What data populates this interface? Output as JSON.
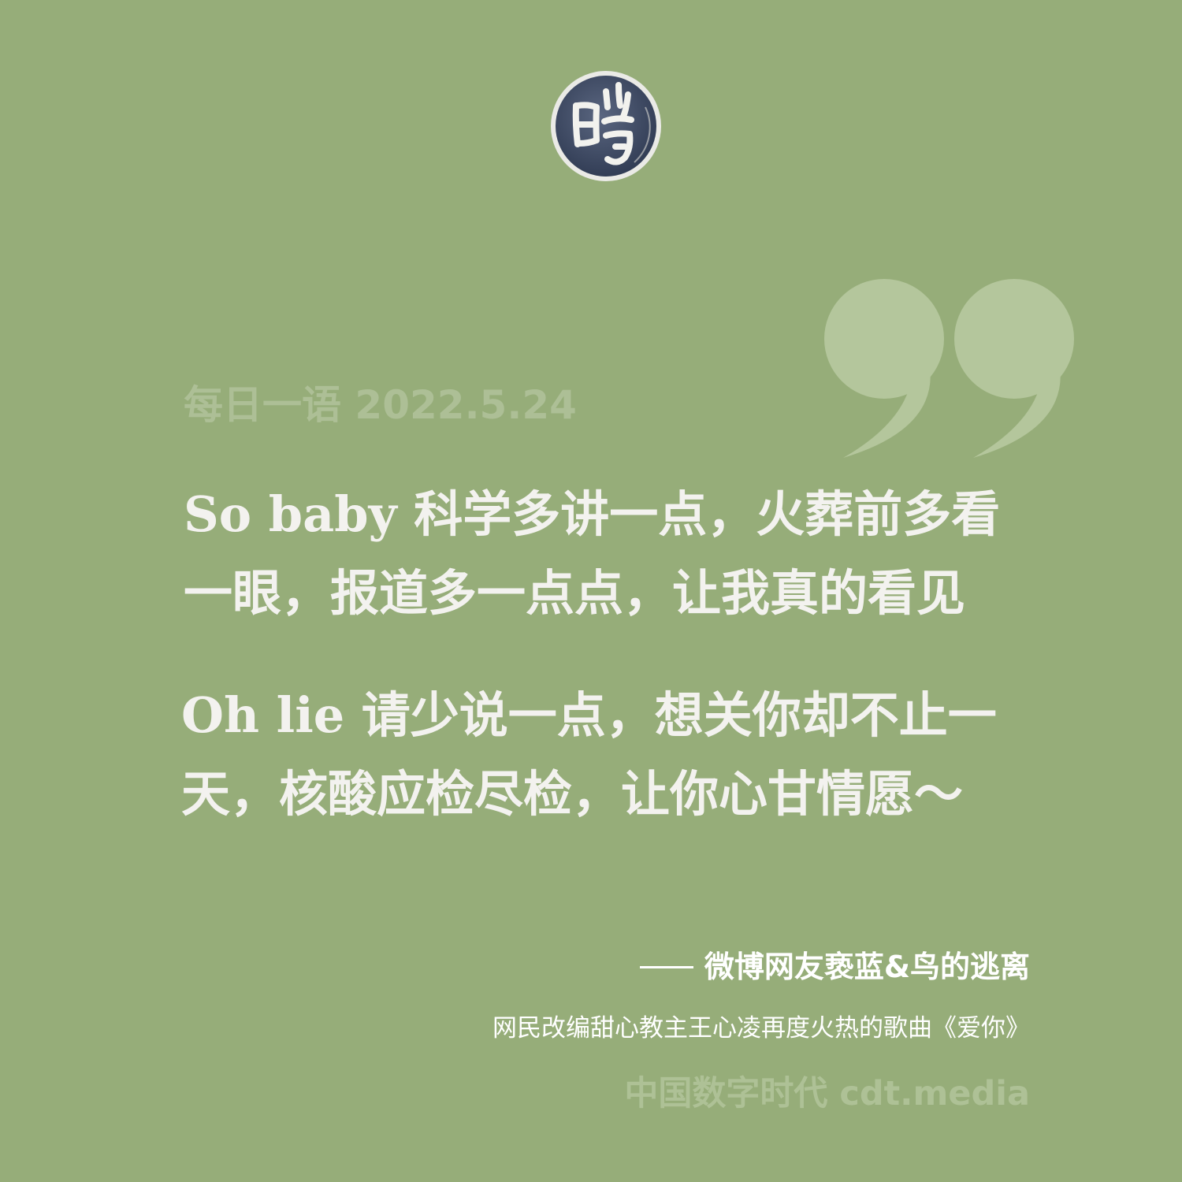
{
  "logo": {
    "icon": "stamp-seal-icon",
    "text": "呓"
  },
  "quote_mark": {
    "icon": "closing-quote-icon",
    "color": "#b4c69c"
  },
  "date_line": "每日一语 2022.5.24",
  "quote": {
    "paragraph_1": {
      "line_1": "So baby 科学多讲一点，火葬前多看",
      "line_2": "一眼，报道多一点点，让我真的看见"
    },
    "paragraph_2": {
      "line_1": "Oh lie 请少说一点，想关你却不止一",
      "line_2": "天，核酸应检尽检，让你心甘情愿～"
    }
  },
  "author": "微博网友亵蓝&鸟的逃离",
  "note": "网民改编甜心教主王心凌再度火热的歌曲《爱你》",
  "brand": "中国数字时代 cdt.media",
  "colors": {
    "background": "#96ad79",
    "quote_text": "#f3f2ef",
    "faded_text": "#adbf96",
    "logo_bg": "#3f4b66"
  }
}
